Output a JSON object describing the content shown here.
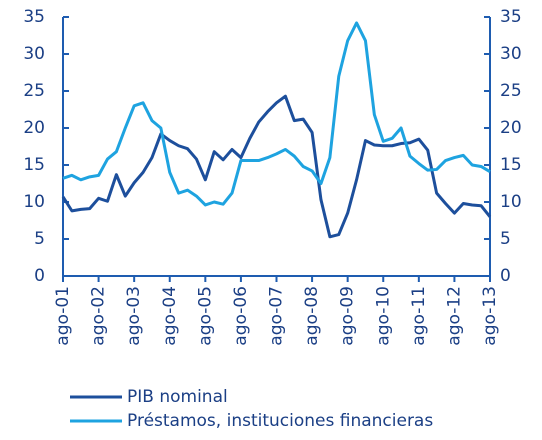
{
  "chart_data": {
    "type": "line",
    "categories": [
      "ago-01",
      null,
      null,
      null,
      "ago-02",
      null,
      null,
      null,
      "ago-03",
      null,
      null,
      null,
      "ago-04",
      null,
      null,
      null,
      "ago-05",
      null,
      null,
      null,
      "ago-06",
      null,
      null,
      null,
      "ago-07",
      null,
      null,
      null,
      "ago-08",
      null,
      null,
      null,
      "ago-09",
      null,
      null,
      null,
      "ago-10",
      null,
      null,
      null,
      "ago-11",
      null,
      null,
      null,
      "ago-12",
      null,
      null,
      null,
      "ago-13"
    ],
    "series": [
      {
        "name": "PIB nominal",
        "color": "#1d4f9c",
        "values": [
          10.7,
          8.8,
          9.0,
          9.1,
          10.5,
          10.1,
          13.7,
          10.8,
          12.6,
          14,
          16,
          19.2,
          18.3,
          17.6,
          17.2,
          15.8,
          13,
          16.8,
          15.7,
          17.1,
          16,
          18.6,
          20.8,
          22.2,
          23.4,
          24.3,
          21,
          21.2,
          19.4,
          10.3,
          5.3,
          5.6,
          8.5,
          13,
          18.3,
          17.7,
          17.6,
          17.6,
          17.9,
          18,
          18.5,
          17,
          11.2,
          9.8,
          8.5,
          9.8,
          9.6,
          9.5,
          8
        ]
      },
      {
        "name": "Préstamos, instituciones financieras",
        "color": "#1ea3e0",
        "axis": "y2",
        "values": [
          13.2,
          13.6,
          13.0,
          13.4,
          13.6,
          15.8,
          16.8,
          20,
          23,
          23.4,
          21,
          20,
          14,
          11.2,
          11.6,
          10.8,
          9.6,
          10,
          9.7,
          11.2,
          15.6,
          15.6,
          15.6,
          16,
          16.5,
          17.1,
          16.2,
          14.8,
          14.2,
          12.5,
          16,
          27,
          31.8,
          34.2,
          31.8,
          21.8,
          18.2,
          18.6,
          20,
          16.2,
          15.2,
          14.3,
          14.4,
          15.6,
          16,
          16.3,
          15,
          14.8,
          14.1
        ]
      }
    ],
    "ylim": [
      0,
      35
    ],
    "yticks": [
      0,
      5,
      10,
      15,
      20,
      25,
      30,
      35
    ],
    "y2lim": [
      0,
      35
    ],
    "y2ticks": [
      0,
      5,
      10,
      15,
      20,
      25,
      30,
      35
    ]
  }
}
